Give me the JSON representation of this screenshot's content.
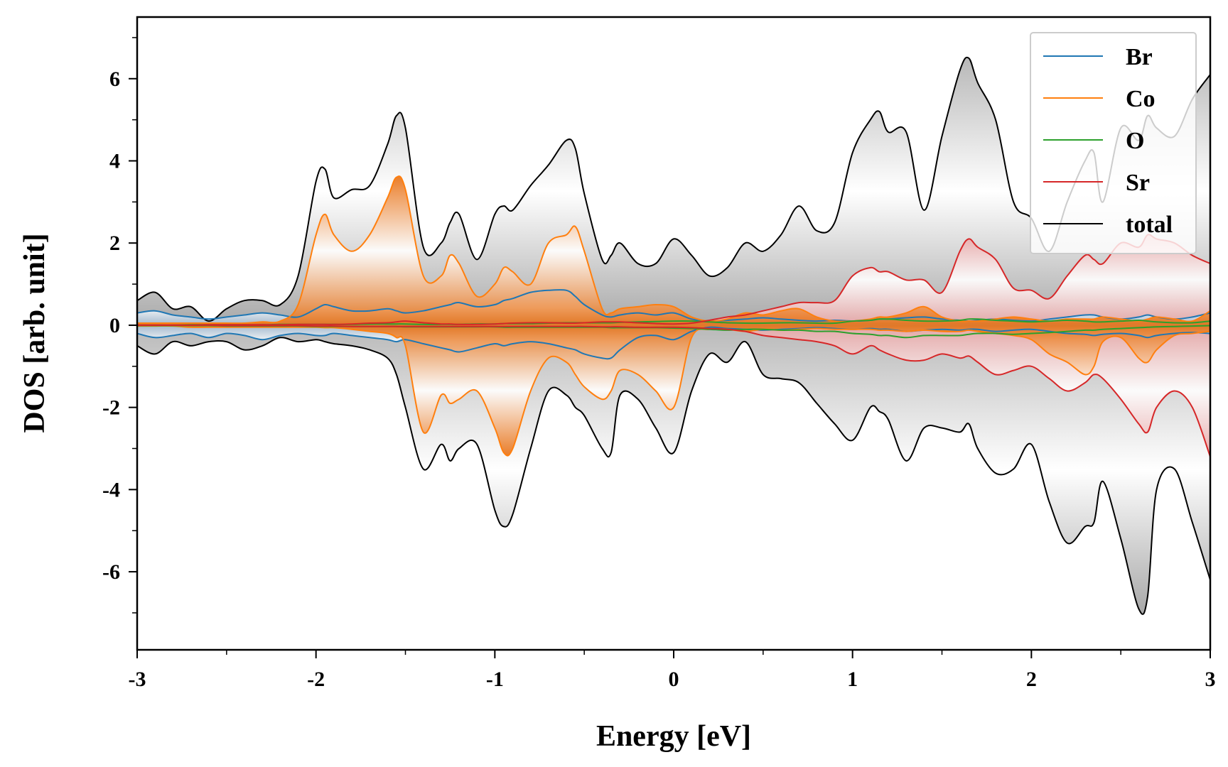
{
  "chart_data": {
    "type": "area",
    "xlabel": "Energy [eV]",
    "ylabel": "DOS [arb. unit]",
    "xlim": [
      -3,
      3
    ],
    "ylim": [
      -7.9,
      7.5
    ],
    "xticks": [
      -3,
      -2,
      -1,
      0,
      1,
      2,
      3
    ],
    "xtick_labels": [
      "-3",
      "-2",
      "-1",
      "0",
      "1",
      "2",
      "3"
    ],
    "yticks": [
      -6,
      -4,
      -2,
      0,
      2,
      4,
      6
    ],
    "ytick_labels": [
      "-6",
      "-4",
      "-2",
      "0",
      "2",
      "4",
      "6"
    ],
    "grid": false,
    "legend_position": "top-right",
    "x": [
      -3.0,
      -2.9,
      -2.8,
      -2.7,
      -2.6,
      -2.5,
      -2.4,
      -2.3,
      -2.2,
      -2.1,
      -2.0,
      -1.95,
      -1.9,
      -1.8,
      -1.7,
      -1.6,
      -1.55,
      -1.5,
      -1.4,
      -1.3,
      -1.25,
      -1.2,
      -1.1,
      -1.0,
      -0.95,
      -0.9,
      -0.8,
      -0.7,
      -0.6,
      -0.55,
      -0.5,
      -0.4,
      -0.35,
      -0.3,
      -0.2,
      -0.1,
      0.0,
      0.1,
      0.2,
      0.3,
      0.4,
      0.5,
      0.6,
      0.7,
      0.8,
      0.9,
      1.0,
      1.1,
      1.15,
      1.2,
      1.3,
      1.4,
      1.5,
      1.6,
      1.65,
      1.7,
      1.8,
      1.9,
      2.0,
      2.1,
      2.2,
      2.3,
      2.35,
      2.4,
      2.5,
      2.6,
      2.65,
      2.7,
      2.8,
      2.9,
      3.0
    ],
    "series": [
      {
        "name": "Br",
        "color": "#1f77b4",
        "up": [
          0.3,
          0.35,
          0.25,
          0.2,
          0.15,
          0.2,
          0.25,
          0.3,
          0.25,
          0.2,
          0.4,
          0.5,
          0.45,
          0.35,
          0.35,
          0.4,
          0.35,
          0.3,
          0.35,
          0.45,
          0.5,
          0.55,
          0.45,
          0.5,
          0.6,
          0.65,
          0.8,
          0.85,
          0.85,
          0.7,
          0.5,
          0.25,
          0.2,
          0.25,
          0.3,
          0.25,
          0.3,
          0.15,
          0.1,
          0.12,
          0.15,
          0.18,
          0.15,
          0.12,
          0.1,
          0.12,
          0.1,
          0.12,
          0.15,
          0.15,
          0.18,
          0.2,
          0.15,
          0.12,
          0.1,
          0.12,
          0.15,
          0.12,
          0.1,
          0.15,
          0.2,
          0.25,
          0.25,
          0.2,
          0.15,
          0.2,
          0.25,
          0.2,
          0.15,
          0.2,
          0.3
        ],
        "down": [
          -0.2,
          -0.3,
          -0.25,
          -0.2,
          -0.3,
          -0.2,
          -0.25,
          -0.35,
          -0.25,
          -0.2,
          -0.25,
          -0.25,
          -0.2,
          -0.25,
          -0.3,
          -0.35,
          -0.4,
          -0.35,
          -0.45,
          -0.55,
          -0.6,
          -0.65,
          -0.55,
          -0.45,
          -0.5,
          -0.45,
          -0.4,
          -0.45,
          -0.55,
          -0.6,
          -0.7,
          -0.8,
          -0.8,
          -0.6,
          -0.3,
          -0.25,
          -0.35,
          -0.15,
          -0.05,
          -0.08,
          -0.1,
          -0.12,
          -0.1,
          -0.08,
          -0.06,
          -0.08,
          -0.1,
          -0.08,
          -0.1,
          -0.1,
          -0.15,
          -0.12,
          -0.1,
          -0.12,
          -0.1,
          -0.1,
          -0.15,
          -0.12,
          -0.1,
          -0.15,
          -0.2,
          -0.22,
          -0.25,
          -0.22,
          -0.2,
          -0.25,
          -0.3,
          -0.25,
          -0.2,
          -0.18,
          -0.2
        ]
      },
      {
        "name": "Co",
        "color": "#ff7f0e",
        "up": [
          0.05,
          0.05,
          0.05,
          0.05,
          0.05,
          0.05,
          0.05,
          0.08,
          0.1,
          0.5,
          2.2,
          2.7,
          2.2,
          1.8,
          2.2,
          3.1,
          3.6,
          3.3,
          1.2,
          1.2,
          1.7,
          1.5,
          0.7,
          1.0,
          1.4,
          1.3,
          1.0,
          2.0,
          2.2,
          2.4,
          1.8,
          0.4,
          0.3,
          0.4,
          0.45,
          0.5,
          0.45,
          0.2,
          0.1,
          0.15,
          0.3,
          0.25,
          0.35,
          0.4,
          0.2,
          0.1,
          0.1,
          0.15,
          0.2,
          0.2,
          0.3,
          0.45,
          0.2,
          0.1,
          0.1,
          0.1,
          0.15,
          0.2,
          0.15,
          0.1,
          0.15,
          0.15,
          0.15,
          0.2,
          0.15,
          0.1,
          0.15,
          0.2,
          0.15,
          0.1,
          0.35
        ],
        "down": [
          -0.02,
          -0.02,
          -0.02,
          -0.05,
          -0.05,
          -0.05,
          -0.05,
          -0.05,
          -0.05,
          -0.05,
          -0.05,
          -0.06,
          -0.06,
          -0.1,
          -0.15,
          -0.2,
          -0.3,
          -0.5,
          -2.6,
          -1.7,
          -1.9,
          -1.8,
          -1.6,
          -2.5,
          -3.1,
          -3.0,
          -1.6,
          -0.8,
          -0.9,
          -1.2,
          -1.5,
          -1.8,
          -1.6,
          -1.1,
          -1.2,
          -1.6,
          -2.0,
          -0.3,
          -0.1,
          -0.1,
          -0.15,
          -0.1,
          -0.12,
          -0.1,
          -0.08,
          -0.1,
          -0.1,
          -0.1,
          -0.12,
          -0.12,
          -0.15,
          -0.12,
          -0.15,
          -0.15,
          -0.12,
          -0.15,
          -0.2,
          -0.25,
          -0.35,
          -0.7,
          -0.9,
          -1.2,
          -1.0,
          -0.4,
          -0.3,
          -0.8,
          -0.9,
          -0.6,
          -0.25,
          -0.2,
          -0.15
        ]
      },
      {
        "name": "O",
        "color": "#2ca02c",
        "up": [
          0.0,
          0.0,
          0.0,
          0.01,
          0.01,
          0.01,
          0.01,
          0.01,
          0.02,
          0.02,
          0.02,
          0.02,
          0.02,
          0.02,
          0.03,
          0.03,
          0.03,
          0.03,
          0.02,
          0.02,
          0.02,
          0.02,
          0.03,
          0.03,
          0.04,
          0.04,
          0.04,
          0.05,
          0.06,
          0.06,
          0.06,
          0.06,
          0.06,
          0.07,
          0.08,
          0.09,
          0.1,
          0.1,
          0.08,
          0.06,
          0.05,
          0.05,
          0.06,
          0.06,
          0.05,
          0.05,
          0.1,
          0.12,
          0.15,
          0.15,
          0.12,
          0.1,
          0.1,
          0.12,
          0.15,
          0.15,
          0.12,
          0.1,
          0.08,
          0.1,
          0.12,
          0.1,
          0.08,
          0.08,
          0.1,
          0.12,
          0.1,
          0.08,
          0.06,
          0.06,
          0.1
        ],
        "down": [
          -0.01,
          -0.01,
          -0.01,
          -0.01,
          -0.01,
          -0.02,
          -0.02,
          -0.02,
          -0.02,
          -0.02,
          -0.03,
          -0.03,
          -0.03,
          -0.03,
          -0.03,
          -0.03,
          -0.03,
          -0.04,
          -0.04,
          -0.04,
          -0.04,
          -0.04,
          -0.04,
          -0.04,
          -0.05,
          -0.05,
          -0.05,
          -0.05,
          -0.05,
          -0.05,
          -0.05,
          -0.05,
          -0.06,
          -0.06,
          -0.06,
          -0.06,
          -0.07,
          -0.08,
          -0.1,
          -0.12,
          -0.1,
          -0.1,
          -0.12,
          -0.12,
          -0.15,
          -0.15,
          -0.2,
          -0.22,
          -0.25,
          -0.25,
          -0.3,
          -0.25,
          -0.25,
          -0.25,
          -0.22,
          -0.2,
          -0.2,
          -0.22,
          -0.2,
          -0.18,
          -0.15,
          -0.12,
          -0.12,
          -0.1,
          -0.08,
          -0.06,
          -0.05,
          -0.04,
          -0.03,
          -0.02,
          -0.01
        ]
      },
      {
        "name": "Sr",
        "color": "#d62728",
        "up": [
          0.0,
          0.0,
          0.0,
          0.0,
          0.01,
          0.01,
          0.01,
          0.01,
          0.01,
          0.02,
          0.02,
          0.02,
          0.02,
          0.03,
          0.05,
          0.06,
          0.08,
          0.1,
          0.06,
          0.03,
          0.03,
          0.02,
          0.02,
          0.03,
          0.04,
          0.05,
          0.06,
          0.06,
          0.05,
          0.05,
          0.06,
          0.08,
          0.08,
          0.08,
          0.06,
          0.04,
          0.03,
          0.05,
          0.12,
          0.2,
          0.25,
          0.35,
          0.45,
          0.55,
          0.55,
          0.6,
          1.2,
          1.4,
          1.3,
          1.3,
          1.1,
          1.1,
          0.8,
          1.8,
          2.1,
          1.9,
          1.6,
          0.9,
          0.85,
          0.65,
          1.2,
          1.7,
          1.6,
          1.5,
          2.0,
          1.9,
          2.2,
          2.1,
          2.0,
          1.7,
          1.5
        ],
        "down": [
          0.0,
          0.0,
          0.0,
          0.0,
          0.0,
          -0.01,
          -0.01,
          -0.01,
          -0.01,
          -0.01,
          -0.02,
          -0.02,
          -0.02,
          -0.03,
          -0.03,
          -0.03,
          -0.03,
          -0.03,
          -0.03,
          -0.03,
          -0.03,
          -0.03,
          -0.03,
          -0.03,
          -0.03,
          -0.03,
          -0.03,
          -0.03,
          -0.03,
          -0.03,
          -0.03,
          -0.04,
          -0.04,
          -0.04,
          -0.05,
          -0.05,
          -0.05,
          -0.06,
          -0.08,
          -0.1,
          -0.15,
          -0.25,
          -0.3,
          -0.35,
          -0.4,
          -0.5,
          -0.7,
          -0.5,
          -0.6,
          -0.7,
          -0.85,
          -0.85,
          -0.7,
          -0.8,
          -0.75,
          -0.9,
          -1.2,
          -1.1,
          -1.0,
          -1.3,
          -1.6,
          -1.4,
          -1.2,
          -1.3,
          -1.8,
          -2.4,
          -2.6,
          -2.0,
          -1.6,
          -2.0,
          -3.2
        ]
      },
      {
        "name": "total",
        "color": "#000000",
        "up": [
          0.6,
          0.8,
          0.4,
          0.45,
          0.1,
          0.4,
          0.6,
          0.6,
          0.5,
          1.2,
          3.5,
          3.8,
          3.1,
          3.3,
          3.4,
          4.4,
          5.1,
          4.8,
          1.9,
          2.0,
          2.5,
          2.7,
          1.6,
          2.7,
          2.9,
          2.8,
          3.4,
          3.9,
          4.5,
          4.3,
          3.2,
          1.6,
          1.7,
          2.0,
          1.5,
          1.5,
          2.1,
          1.7,
          1.2,
          1.4,
          2.0,
          1.8,
          2.2,
          2.9,
          2.3,
          2.5,
          4.2,
          5.0,
          5.2,
          4.7,
          4.7,
          2.8,
          4.6,
          6.2,
          6.5,
          5.9,
          5.0,
          3.0,
          2.6,
          1.8,
          3.0,
          4.0,
          4.2,
          3.0,
          4.8,
          4.5,
          5.1,
          4.8,
          4.6,
          5.5,
          6.1
        ],
        "down": [
          -0.5,
          -0.7,
          -0.4,
          -0.5,
          -0.4,
          -0.4,
          -0.6,
          -0.5,
          -0.3,
          -0.4,
          -0.35,
          -0.4,
          -0.45,
          -0.5,
          -0.6,
          -0.8,
          -1.2,
          -2.0,
          -3.5,
          -2.9,
          -3.3,
          -3.0,
          -2.9,
          -4.5,
          -4.9,
          -4.6,
          -3.0,
          -1.6,
          -1.7,
          -2.0,
          -2.2,
          -3.0,
          -3.1,
          -1.7,
          -1.8,
          -2.5,
          -3.1,
          -1.6,
          -0.7,
          -0.9,
          -0.4,
          -1.2,
          -1.3,
          -1.4,
          -1.9,
          -2.4,
          -2.8,
          -2.0,
          -2.1,
          -2.3,
          -3.3,
          -2.5,
          -2.5,
          -2.6,
          -2.4,
          -3.0,
          -3.6,
          -3.5,
          -2.9,
          -4.3,
          -5.3,
          -4.9,
          -4.8,
          -3.8,
          -5.2,
          -6.9,
          -6.6,
          -4.0,
          -3.5,
          -4.8,
          -6.2
        ]
      }
    ]
  }
}
